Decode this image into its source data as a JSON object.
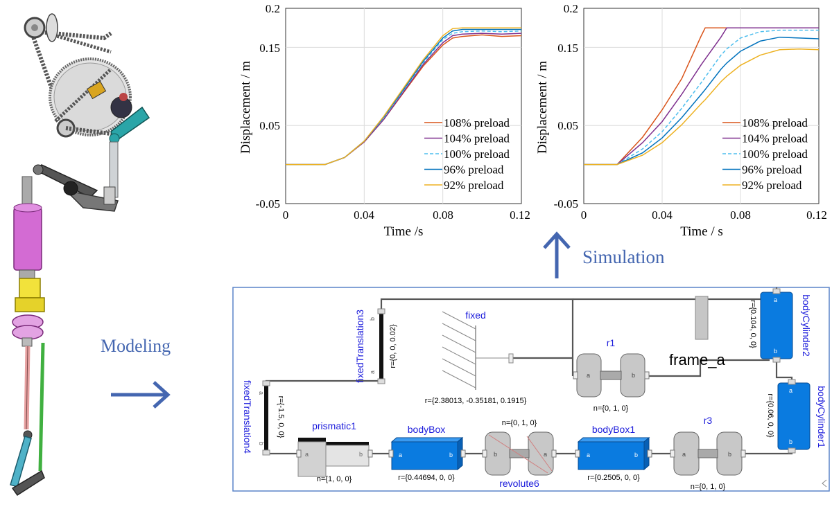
{
  "labels": {
    "modeling": "Modeling",
    "simulation": "Simulation"
  },
  "charts_text": [
    {
      "xlabel": "Time /s",
      "ylabel": "Displacement  / m",
      "yticks": [
        "0.2",
        "0.15",
        "0.05",
        "-0.05"
      ],
      "xticks": [
        "0",
        "0.04",
        "0.08",
        "0.12"
      ]
    },
    {
      "xlabel": "Time /  s",
      "ylabel": "Displacement  / m",
      "yticks": [
        "0.2",
        "0.15",
        "0.05",
        "-0.05"
      ],
      "xticks": [
        "0",
        "0.04",
        "0.08",
        "0.12"
      ]
    }
  ],
  "chart_data": [
    {
      "type": "line",
      "xlabel": "Time /s",
      "ylabel": "Displacement  / m",
      "xlim": [
        0,
        0.12
      ],
      "ylim": [
        -0.05,
        0.2
      ],
      "grid": true,
      "legend_position": "bottom-right",
      "x": [
        0,
        0.02,
        0.03,
        0.04,
        0.05,
        0.06,
        0.07,
        0.08,
        0.085,
        0.09,
        0.1,
        0.11,
        0.12
      ],
      "series": [
        {
          "name": "108% preload",
          "color": "#d95319",
          "style": "solid",
          "values": [
            0,
            0,
            0.009,
            0.029,
            0.058,
            0.092,
            0.126,
            0.153,
            0.162,
            0.164,
            0.166,
            0.164,
            0.165
          ]
        },
        {
          "name": "104% preload",
          "color": "#7e2f8e",
          "style": "solid",
          "values": [
            0,
            0,
            0.009,
            0.029,
            0.058,
            0.093,
            0.128,
            0.156,
            0.165,
            0.167,
            0.168,
            0.167,
            0.168
          ]
        },
        {
          "name": "100% preload",
          "color": "#4dbeee",
          "style": "dashed",
          "values": [
            0,
            0,
            0.009,
            0.03,
            0.06,
            0.095,
            0.13,
            0.16,
            0.168,
            0.17,
            0.171,
            0.17,
            0.171
          ]
        },
        {
          "name": "96% preload",
          "color": "#0072bd",
          "style": "solid",
          "values": [
            0,
            0,
            0.009,
            0.03,
            0.061,
            0.096,
            0.132,
            0.162,
            0.171,
            0.173,
            0.173,
            0.173,
            0.173
          ]
        },
        {
          "name": "92% preload",
          "color": "#edb120",
          "style": "solid",
          "values": [
            0,
            0,
            0.009,
            0.03,
            0.062,
            0.098,
            0.134,
            0.165,
            0.174,
            0.175,
            0.175,
            0.175,
            0.175
          ]
        }
      ]
    },
    {
      "type": "line",
      "xlabel": "Time /  s",
      "ylabel": "Displacement  / m",
      "xlim": [
        0,
        0.12
      ],
      "ylim": [
        -0.05,
        0.2
      ],
      "grid": true,
      "legend_position": "bottom-right",
      "x": [
        0,
        0.017,
        0.03,
        0.04,
        0.05,
        0.06,
        0.062,
        0.07,
        0.073,
        0.08,
        0.09,
        0.1,
        0.11,
        0.12
      ],
      "series": [
        {
          "name": "108% preload",
          "color": "#d95319",
          "style": "solid",
          "values": [
            0,
            0,
            0.035,
            0.07,
            0.11,
            0.165,
            0.175,
            0.175,
            0.175,
            0.175,
            0.175,
            0.175,
            0.175,
            0.175
          ]
        },
        {
          "name": "104% preload",
          "color": "#7e2f8e",
          "style": "solid",
          "values": [
            0,
            0,
            0.028,
            0.055,
            0.09,
            0.128,
            0.135,
            0.163,
            0.175,
            0.175,
            0.175,
            0.175,
            0.175,
            0.175
          ]
        },
        {
          "name": "100% preload",
          "color": "#4dbeee",
          "style": "dashed",
          "values": [
            0,
            0,
            0.02,
            0.042,
            0.072,
            0.105,
            0.112,
            0.14,
            0.148,
            0.162,
            0.17,
            0.172,
            0.172,
            0.172
          ]
        },
        {
          "name": "96% preload",
          "color": "#0072bd",
          "style": "solid",
          "values": [
            0,
            0,
            0.015,
            0.034,
            0.06,
            0.09,
            0.096,
            0.122,
            0.13,
            0.145,
            0.158,
            0.163,
            0.162,
            0.161
          ]
        },
        {
          "name": "92% preload",
          "color": "#edb120",
          "style": "solid",
          "values": [
            0,
            0,
            0.012,
            0.028,
            0.051,
            0.078,
            0.083,
            0.106,
            0.113,
            0.127,
            0.14,
            0.147,
            0.148,
            0.147
          ]
        }
      ]
    }
  ],
  "model": {
    "components": [
      {
        "id": "fixedTranslation3",
        "label": "fixedTranslation3",
        "param": "r={0, 0, 0.02}"
      },
      {
        "id": "fixed",
        "label": "fixed",
        "param": "r={2.38013, -0.35181, 0.1915}"
      },
      {
        "id": "r1",
        "label": "r1",
        "param": "n={0, 1, 0}"
      },
      {
        "id": "bodyCylinder2",
        "label": "bodyCylinder2",
        "param": "r={0.104, 0, 0}"
      },
      {
        "id": "frame_a",
        "label": "frame_a",
        "param": ""
      },
      {
        "id": "fixedTranslation4",
        "label": "fixedTranslation4",
        "param": "r={-1.5, 0, 0}"
      },
      {
        "id": "bodyCylinder1",
        "label": "bodyCylinder1",
        "param": "r={0.06, 0, 0}"
      },
      {
        "id": "prismatic1",
        "label": "prismatic1",
        "param": "n={1, 0, 0}"
      },
      {
        "id": "bodyBox",
        "label": "bodyBox",
        "param": "r={0.44694, 0, 0}"
      },
      {
        "id": "revolute6",
        "label": "revolute6",
        "param": "n={0, 1, 0}"
      },
      {
        "id": "bodyBox1",
        "label": "bodyBox1",
        "param": "r={0.2505, 0, 0}"
      },
      {
        "id": "r3",
        "label": "r3",
        "param": "n={0, 1, 0}"
      }
    ],
    "port_a": "a",
    "port_b": "b"
  },
  "colors": {
    "arrow": "#4466b0",
    "label": "#4466b0",
    "component_name": "#1a1adb",
    "body_blue": "#0a7be0"
  }
}
